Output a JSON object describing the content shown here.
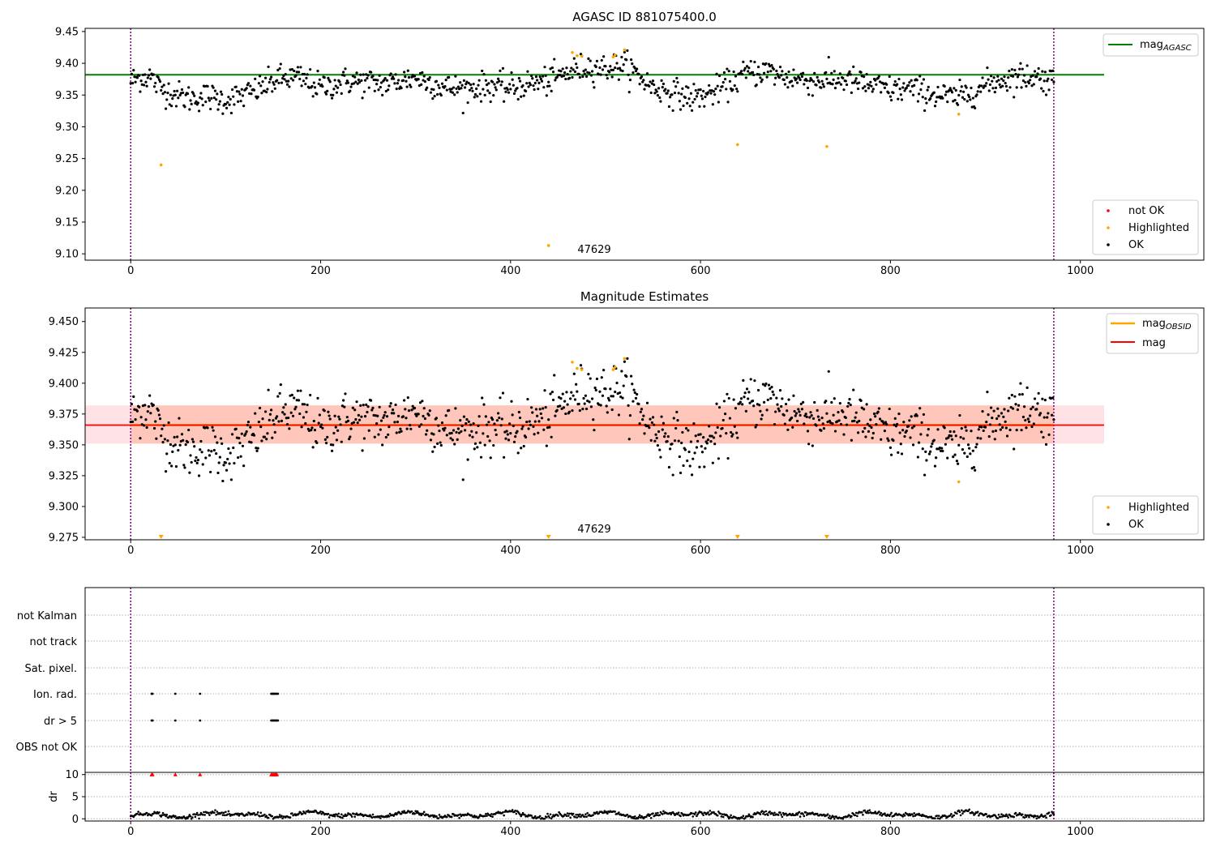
{
  "chart_data": [
    {
      "type": "scatter",
      "title": "AGASC ID 881075400.0",
      "xlim": [
        -48,
        1130
      ],
      "ylim": [
        9.09,
        9.455
      ],
      "x_ticks": [
        0,
        200,
        400,
        600,
        800,
        1000
      ],
      "y_ticks": [
        9.1,
        9.15,
        9.2,
        9.25,
        9.3,
        9.35,
        9.4,
        9.45
      ],
      "y_tick_labels": [
        "9.10",
        "9.15",
        "9.20",
        "9.25",
        "9.30",
        "9.35",
        "9.40",
        "9.45"
      ],
      "x_range": [
        0,
        972
      ],
      "vlines": [
        0,
        972
      ],
      "hline": {
        "name": "mag_AGASC",
        "y": 9.382,
        "x0": -48,
        "x1": 1025,
        "color": "#008000"
      },
      "annotation": {
        "text": "47629",
        "x": 485,
        "y": 9.1
      },
      "legend_line": {
        "label": "mag",
        "sub": "AGASC",
        "placement": "upper right"
      },
      "legend_points": {
        "placement": "lower right",
        "entries": [
          "not OK",
          "Highlighted",
          "OK"
        ]
      },
      "highlighted": [
        {
          "x": 32,
          "y": 9.24
        },
        {
          "x": 440,
          "y": 9.113
        },
        {
          "x": 465,
          "y": 9.417
        },
        {
          "x": 470,
          "y": 9.412
        },
        {
          "x": 475,
          "y": 9.411
        },
        {
          "x": 508,
          "y": 9.41
        },
        {
          "x": 510,
          "y": 9.413
        },
        {
          "x": 520,
          "y": 9.421
        },
        {
          "x": 639,
          "y": 9.272
        },
        {
          "x": 733,
          "y": 9.269
        },
        {
          "x": 872,
          "y": 9.32
        }
      ],
      "ok_trend": [
        [
          0,
          9.372
        ],
        [
          10,
          9.378
        ],
        [
          20,
          9.38
        ],
        [
          30,
          9.362
        ],
        [
          45,
          9.352
        ],
        [
          60,
          9.345
        ],
        [
          80,
          9.348
        ],
        [
          100,
          9.342
        ],
        [
          120,
          9.35
        ],
        [
          140,
          9.363
        ],
        [
          155,
          9.375
        ],
        [
          175,
          9.378
        ],
        [
          200,
          9.362
        ],
        [
          230,
          9.372
        ],
        [
          250,
          9.37
        ],
        [
          270,
          9.368
        ],
        [
          300,
          9.378
        ],
        [
          330,
          9.362
        ],
        [
          350,
          9.36
        ],
        [
          380,
          9.365
        ],
        [
          400,
          9.36
        ],
        [
          420,
          9.368
        ],
        [
          440,
          9.372
        ],
        [
          460,
          9.385
        ],
        [
          480,
          9.395
        ],
        [
          500,
          9.392
        ],
        [
          520,
          9.398
        ],
        [
          535,
          9.38
        ],
        [
          550,
          9.362
        ],
        [
          570,
          9.355
        ],
        [
          590,
          9.345
        ],
        [
          610,
          9.352
        ],
        [
          630,
          9.368
        ],
        [
          650,
          9.385
        ],
        [
          670,
          9.388
        ],
        [
          690,
          9.378
        ],
        [
          720,
          9.372
        ],
        [
          750,
          9.375
        ],
        [
          780,
          9.365
        ],
        [
          800,
          9.358
        ],
        [
          820,
          9.36
        ],
        [
          850,
          9.35
        ],
        [
          870,
          9.345
        ],
        [
          890,
          9.358
        ],
        [
          910,
          9.372
        ],
        [
          930,
          9.378
        ],
        [
          950,
          9.38
        ],
        [
          972,
          9.372
        ]
      ]
    },
    {
      "type": "scatter",
      "title": "Magnitude Estimates",
      "xlim": [
        -48,
        1130
      ],
      "ylim": [
        9.273,
        9.461
      ],
      "x_ticks": [
        0,
        200,
        400,
        600,
        800,
        1000
      ],
      "y_ticks": [
        9.275,
        9.3,
        9.325,
        9.35,
        9.375,
        9.4,
        9.425,
        9.45
      ],
      "y_tick_labels": [
        "9.275",
        "9.300",
        "9.325",
        "9.350",
        "9.375",
        "9.400",
        "9.425",
        "9.450"
      ],
      "vlines": [
        0,
        972
      ],
      "band_outer": {
        "y0": 9.351,
        "y1": 9.382,
        "x0": -48,
        "x1": 1025,
        "color": "#ffb6c1"
      },
      "band_inner": {
        "y0": 9.351,
        "y1": 9.382,
        "x0": 0,
        "x1": 972,
        "color": "#ffa07a"
      },
      "mag_obsid": {
        "y": 9.366,
        "x0": 0,
        "x1": 972,
        "color": "#ffa500"
      },
      "mag": {
        "y": 9.366,
        "x0": -48,
        "x1": 1025,
        "color": "#ff0000"
      },
      "annotation": {
        "text": "47629",
        "x": 485,
        "y": 9.279
      },
      "legend_line": {
        "entries": [
          {
            "label": "mag",
            "sub": "OBSID"
          },
          {
            "label": "mag",
            "sub": ""
          }
        ],
        "placement": "upper right"
      },
      "legend_points": {
        "placement": "lower right",
        "entries": [
          "Highlighted",
          "OK"
        ]
      },
      "highlighted": [
        {
          "x": 465,
          "y": 9.417
        },
        {
          "x": 470,
          "y": 9.412
        },
        {
          "x": 475,
          "y": 9.411
        },
        {
          "x": 508,
          "y": 9.411
        },
        {
          "x": 510,
          "y": 9.413
        },
        {
          "x": 520,
          "y": 9.42
        },
        {
          "x": 872,
          "y": 9.32
        }
      ],
      "clipped_markers_x": [
        32,
        440,
        639,
        733
      ]
    },
    {
      "type": "scatter",
      "categories": [
        "not Kalman",
        "not track",
        "Sat. pixel.",
        "Ion. rad.",
        "dr > 5",
        "OBS not OK"
      ],
      "flag_hits": {
        "Ion. rad.": [
          22,
          23,
          47,
          73,
          148,
          149,
          150,
          151,
          152,
          153,
          154,
          155
        ],
        "dr > 5": [
          22,
          23,
          47,
          73,
          148,
          149,
          150,
          151,
          152,
          153,
          154,
          155
        ]
      },
      "dr_ylabel": "dr",
      "dr_ticks": [
        0,
        5,
        10
      ],
      "dr_ylim": [
        -0.5,
        10.5
      ],
      "dr_clipped_x": [
        22,
        23,
        47,
        73,
        148,
        149,
        150,
        151,
        152,
        153,
        154
      ],
      "x_ticks": [
        0,
        200,
        400,
        600,
        800,
        1000
      ],
      "xlim": [
        -48,
        1130
      ],
      "vlines": [
        0,
        972
      ]
    }
  ],
  "legend_labels": {
    "mag": "mag",
    "agasc_sub": "AGASC",
    "obsid_sub": "OBSID",
    "not_ok": "not OK",
    "highlighted": "Highlighted",
    "ok": "OK"
  },
  "colors": {
    "ok": "#000000",
    "highlighted": "#ffa500",
    "not_ok": "#ff0000",
    "vline": "#800080",
    "grid": "#b0b0b0"
  }
}
